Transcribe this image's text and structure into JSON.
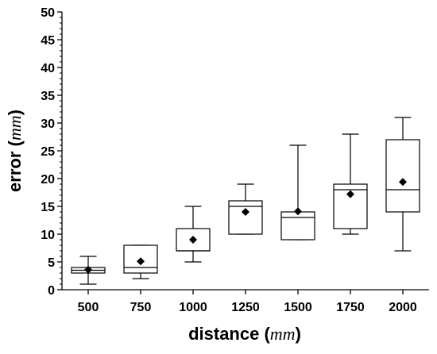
{
  "chart_data": {
    "type": "box",
    "xlabel": {
      "text": "distance",
      "unit": "mm"
    },
    "ylabel": {
      "text": "error",
      "unit": "mm"
    },
    "ylim": [
      0,
      50
    ],
    "y_ticks": [
      0,
      5,
      10,
      15,
      20,
      25,
      30,
      35,
      40,
      45,
      50
    ],
    "y_minor_step": 1,
    "grid": false,
    "legend": "none",
    "colors": {
      "box_stroke": "#000000",
      "box_fill": "#ffffff",
      "mean_marker": "#000000"
    },
    "categories": [
      "500",
      "750",
      "1000",
      "1250",
      "1500",
      "1750",
      "2000"
    ],
    "boxes": [
      {
        "category": "500",
        "whisker_low": 1,
        "q1": 3,
        "median": 3.5,
        "q3": 4,
        "whisker_high": 6,
        "mean": 3.6
      },
      {
        "category": "750",
        "whisker_low": 2,
        "q1": 3,
        "median": 4,
        "q3": 8,
        "whisker_high": 8,
        "mean": 5.1
      },
      {
        "category": "1000",
        "whisker_low": 5,
        "q1": 7,
        "median": 7,
        "q3": 11,
        "whisker_high": 15,
        "mean": 9.0
      },
      {
        "category": "1250",
        "whisker_low": 10,
        "q1": 10,
        "median": 15,
        "q3": 16,
        "whisker_high": 19,
        "mean": 14.0
      },
      {
        "category": "1500",
        "whisker_low": 9,
        "q1": 9,
        "median": 13,
        "q3": 14,
        "whisker_high": 26,
        "mean": 14.1
      },
      {
        "category": "1750",
        "whisker_low": 10,
        "q1": 11,
        "median": 18,
        "q3": 19,
        "whisker_high": 28,
        "mean": 17.2
      },
      {
        "category": "2000",
        "whisker_low": 7,
        "q1": 14,
        "median": 18,
        "q3": 27,
        "whisker_high": 31,
        "mean": 19.4
      }
    ]
  }
}
